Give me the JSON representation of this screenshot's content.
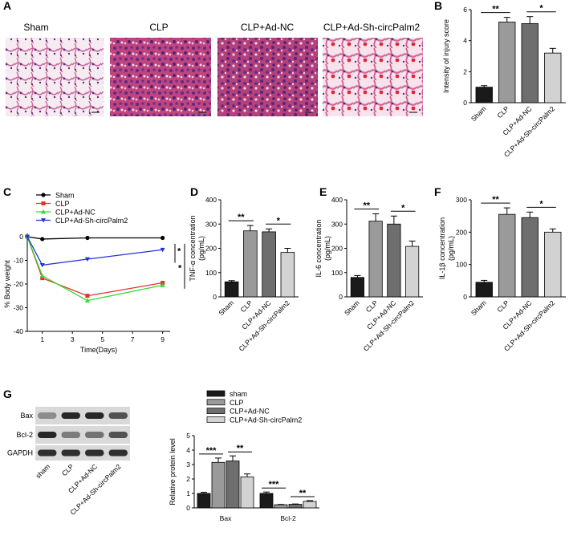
{
  "panel_letters": [
    "A",
    "B",
    "C",
    "D",
    "E",
    "F",
    "G"
  ],
  "histology": {
    "labels": [
      "Sham",
      "CLP",
      "CLP+Ad-NC",
      "CLP+Ad-Sh-circPalm2"
    ],
    "colors": {
      "background": "#f4e6ee",
      "tissue": "#c0457e",
      "nuclei": "#5a2a86",
      "hemorrhage": "#cc2a3a"
    }
  },
  "sig": {
    "one": "*",
    "two": "**",
    "three": "***"
  },
  "colors": {
    "bar1": "#1a1a1a",
    "bar2": "#9a9a9a",
    "bar3": "#6e6e6e",
    "bar4": "#d2d2d2",
    "sham": "#000000",
    "clp": "#e8302a",
    "adnc": "#33dd33",
    "adsh": "#2233dd"
  },
  "chart_data": [
    {
      "id": "B",
      "type": "bar",
      "categories": [
        "Sham",
        "CLP",
        "CLP+Ad-NC",
        "CLP+Ad-Sh-circPalm2"
      ],
      "values": [
        1.0,
        5.2,
        5.1,
        3.2
      ],
      "errors": [
        0.1,
        0.3,
        0.45,
        0.3
      ],
      "ylabel": "Intensity of injury score",
      "ylim": [
        0,
        6
      ],
      "yticks": [
        0,
        2,
        4,
        6
      ],
      "significance": [
        {
          "from": 0,
          "to": 1,
          "text": "**"
        },
        {
          "from": 2,
          "to": 3,
          "text": "*"
        }
      ]
    },
    {
      "id": "C",
      "type": "line",
      "x": [
        0,
        1,
        4,
        9
      ],
      "xticks": [
        1,
        3,
        5,
        7,
        9
      ],
      "yticks": [
        0,
        -10,
        -20,
        -30,
        -40
      ],
      "ylim": [
        -40,
        0
      ],
      "xlim": [
        0,
        9.5
      ],
      "xlabel": "Time(Days)",
      "ylabel": "% Body weight",
      "series": [
        {
          "name": "Sham",
          "values": [
            0,
            -1,
            -0.5,
            -0.5
          ]
        },
        {
          "name": "CLP",
          "values": [
            0,
            -17.5,
            -25,
            -19.5
          ]
        },
        {
          "name": "CLP+Ad-NC",
          "values": [
            0,
            -16.5,
            -27,
            -20.5
          ]
        },
        {
          "name": "CLP+Ad-Sh-circPalm2",
          "values": [
            0,
            -12,
            -9.5,
            -5.5
          ]
        }
      ],
      "significance": [
        "*",
        "*"
      ]
    },
    {
      "id": "D",
      "type": "bar",
      "categories": [
        "Sham",
        "CLP",
        "CLP+Ad-NC",
        "CLP+Ad-Sh-circPalm2"
      ],
      "values": [
        62,
        272,
        268,
        183
      ],
      "errors": [
        5,
        22,
        12,
        17
      ],
      "ylabel": "TNF-α concentration\n(pg/mL)",
      "ylim": [
        0,
        400
      ],
      "yticks": [
        0,
        100,
        200,
        300,
        400
      ],
      "significance": [
        {
          "from": 0,
          "to": 1,
          "text": "**"
        },
        {
          "from": 2,
          "to": 3,
          "text": "*"
        }
      ]
    },
    {
      "id": "E",
      "type": "bar",
      "categories": [
        "Sham",
        "CLP",
        "CLP+Ad-NC",
        "CLP+Ad-Sh-circPalm2"
      ],
      "values": [
        80,
        312,
        300,
        208
      ],
      "errors": [
        8,
        30,
        33,
        22
      ],
      "ylabel": "IL-6 concentration\n(pg/mL)",
      "ylim": [
        0,
        400
      ],
      "yticks": [
        0,
        100,
        200,
        300,
        400
      ],
      "significance": [
        {
          "from": 0,
          "to": 1,
          "text": "**"
        },
        {
          "from": 2,
          "to": 3,
          "text": "*"
        }
      ]
    },
    {
      "id": "F",
      "type": "bar",
      "categories": [
        "Sham",
        "CLP",
        "CLP+Ad-NC",
        "CLP+Ad-Sh-circPalm2"
      ],
      "values": [
        45,
        255,
        245,
        200
      ],
      "errors": [
        6,
        20,
        17,
        10
      ],
      "ylabel": "IL-1β concentration\n(pg/mL)",
      "ylim": [
        0,
        300
      ],
      "yticks": [
        0,
        100,
        200,
        300
      ],
      "significance": [
        {
          "from": 0,
          "to": 1,
          "text": "**"
        },
        {
          "from": 2,
          "to": 3,
          "text": "*"
        }
      ]
    },
    {
      "id": "G",
      "type": "bar",
      "categories": [
        "Bax",
        "Bcl-2"
      ],
      "series": [
        {
          "name": "sham",
          "values": [
            1.0,
            1.0
          ],
          "errors": [
            0.08,
            0.1
          ]
        },
        {
          "name": "CLP",
          "values": [
            3.15,
            0.22
          ],
          "errors": [
            0.3,
            0.02
          ]
        },
        {
          "name": "CLP+Ad-NC",
          "values": [
            3.25,
            0.25
          ],
          "errors": [
            0.35,
            0.02
          ]
        },
        {
          "name": "CLP+Ad-Sh-circPalm2",
          "values": [
            2.15,
            0.45
          ],
          "errors": [
            0.2,
            0.05
          ]
        }
      ],
      "ylabel": "Relative protein level",
      "ylim": [
        0,
        5
      ],
      "yticks": [
        0,
        1,
        2,
        3,
        4,
        5
      ],
      "significance": [
        {
          "group": 0,
          "from": 0,
          "to": 1,
          "text": "***"
        },
        {
          "group": 0,
          "from": 2,
          "to": 3,
          "text": "**"
        },
        {
          "group": 1,
          "from": 0,
          "to": 1,
          "text": "***"
        },
        {
          "group": 1,
          "from": 2,
          "to": 3,
          "text": "**"
        }
      ]
    }
  ],
  "blot": {
    "rows": [
      "Bax",
      "Bcl-2",
      "GAPDH"
    ],
    "lanes": [
      "sham",
      "CLP",
      "CLP+Ad-NC",
      "CLP+Ad-Sh-circPalm2"
    ],
    "intensity": [
      [
        0.35,
        0.95,
        0.95,
        0.7
      ],
      [
        0.95,
        0.45,
        0.5,
        0.7
      ],
      [
        0.9,
        0.9,
        0.9,
        0.9
      ]
    ]
  }
}
